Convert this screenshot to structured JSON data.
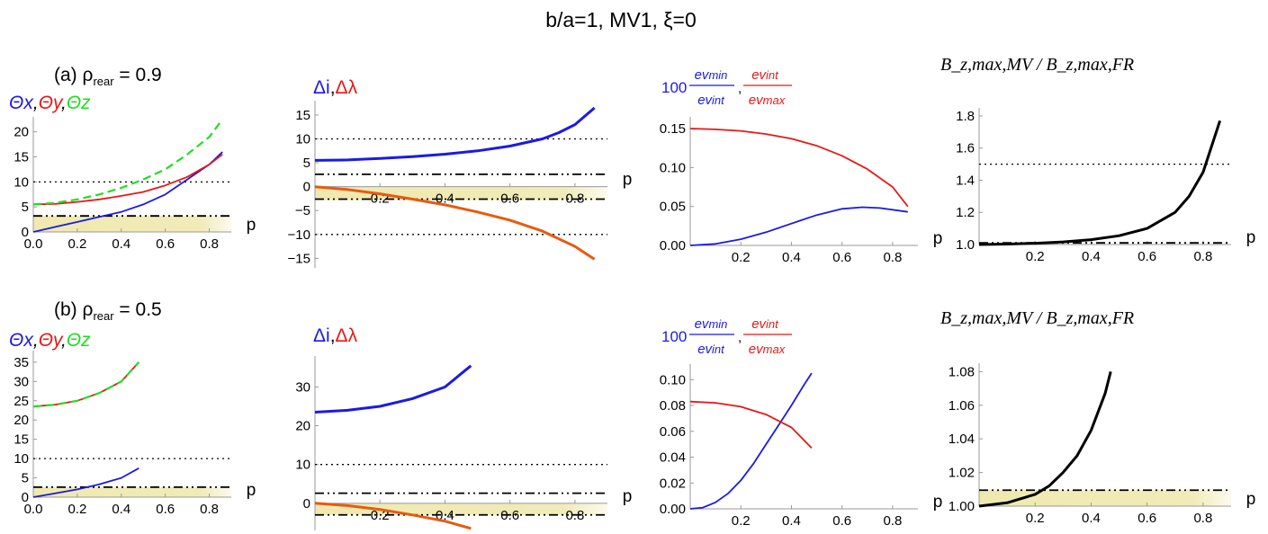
{
  "title": "b/a=1,  MV1,  ξ=0",
  "rows": [
    {
      "label_prefix": "(a)  ρ",
      "label_sub": "rear",
      "label_suffix": " = 0.9"
    },
    {
      "label_prefix": "(b)  ρ",
      "label_sub": "rear",
      "label_suffix": " = 0.5"
    }
  ],
  "headers": {
    "theta": {
      "x": "Θx",
      "y": "Θy",
      "z": "Θz"
    },
    "delta": {
      "i": "Δi",
      "lambda": "Δλ"
    },
    "ev": {
      "factor": "100",
      "num1": "ev_min",
      "den1": "ev_int",
      "num2": "ev_int",
      "den2": "ev_max"
    },
    "bz": "B_z,max,MV / B_z,max,FR"
  },
  "colors": {
    "blue": "#1a1ae6",
    "red": "#e81818",
    "green": "#22dd22",
    "black": "#000000",
    "band": "#efe9b0",
    "orange": "#e85a10"
  },
  "xlabel": "p",
  "chart_data": [
    {
      "id": "a1",
      "type": "line",
      "row": "a",
      "xlim": [
        0,
        0.9
      ],
      "ylim": [
        0,
        23
      ],
      "xticks": [
        "0.0",
        "0.2",
        "0.4",
        "0.6",
        "0.8"
      ],
      "yticks": [
        "0",
        "5",
        "10",
        "15",
        "20"
      ],
      "series": [
        {
          "name": "Θx",
          "color": "blue",
          "x": [
            0,
            0.1,
            0.2,
            0.3,
            0.4,
            0.5,
            0.6,
            0.7,
            0.8,
            0.86
          ],
          "y": [
            0,
            1,
            2,
            3,
            4,
            5.5,
            7.5,
            10.5,
            13.5,
            16
          ]
        },
        {
          "name": "Θy",
          "color": "red",
          "x": [
            0,
            0.1,
            0.2,
            0.3,
            0.4,
            0.5,
            0.6,
            0.7,
            0.8,
            0.86
          ],
          "y": [
            5.5,
            5.6,
            6,
            6.5,
            7.2,
            8,
            9.3,
            11,
            13.5,
            15.5
          ]
        },
        {
          "name": "Θz",
          "color": "green",
          "dashed": true,
          "x": [
            0,
            0.1,
            0.2,
            0.3,
            0.4,
            0.5,
            0.6,
            0.7,
            0.8,
            0.86
          ],
          "y": [
            5.5,
            5.8,
            6.5,
            7.5,
            8.8,
            10.5,
            12.5,
            15.5,
            19,
            22.5
          ]
        }
      ],
      "hlines": [
        {
          "y": 10,
          "style": "dotted"
        },
        {
          "y": 3.2,
          "style": "dashdot"
        }
      ],
      "band": [
        0,
        3.2
      ]
    },
    {
      "id": "a2",
      "type": "line",
      "row": "a",
      "xlim": [
        0,
        0.9
      ],
      "ylim": [
        -17,
        18
      ],
      "xticks": [
        "0.2",
        "0.4",
        "0.6",
        "0.8"
      ],
      "yticks": [
        "-15",
        "-10",
        "-5",
        "0",
        "5",
        "10",
        "15"
      ],
      "xaxis_at_zero": true,
      "series": [
        {
          "name": "Δi",
          "color": "blue",
          "x": [
            0,
            0.1,
            0.2,
            0.3,
            0.4,
            0.5,
            0.6,
            0.7,
            0.75,
            0.8,
            0.86
          ],
          "y": [
            5.5,
            5.6,
            5.9,
            6.3,
            6.8,
            7.5,
            8.5,
            10,
            11.3,
            13,
            16.5
          ]
        },
        {
          "name": "Δλ",
          "color": "red",
          "x": [
            0,
            0.1,
            0.2,
            0.3,
            0.4,
            0.5,
            0.6,
            0.7,
            0.8,
            0.86
          ],
          "y": [
            0,
            -0.6,
            -1.5,
            -2.6,
            -3.8,
            -5.3,
            -7,
            -9.3,
            -12.5,
            -15.2
          ]
        }
      ],
      "hlines": [
        {
          "y": 10,
          "style": "dotted"
        },
        {
          "y": -10,
          "style": "dotted"
        },
        {
          "y": 2.6,
          "style": "dashdot"
        },
        {
          "y": -2.6,
          "style": "dashdot"
        }
      ],
      "band": [
        -2.8,
        0
      ]
    },
    {
      "id": "a3",
      "type": "line",
      "row": "a",
      "xlim": [
        0,
        0.9
      ],
      "ylim": [
        0,
        0.165
      ],
      "xticks": [
        "0.2",
        "0.4",
        "0.6",
        "0.8"
      ],
      "yticks": [
        "0.00",
        "0.05",
        "0.10",
        "0.15"
      ],
      "series": [
        {
          "name": "ev_min/ev_int",
          "color": "blue",
          "x": [
            0,
            0.1,
            0.2,
            0.3,
            0.4,
            0.5,
            0.6,
            0.68,
            0.75,
            0.86
          ],
          "y": [
            0,
            0.002,
            0.008,
            0.017,
            0.028,
            0.039,
            0.047,
            0.049,
            0.048,
            0.043
          ]
        },
        {
          "name": "ev_int/ev_max",
          "color": "red",
          "x": [
            0,
            0.1,
            0.2,
            0.3,
            0.4,
            0.5,
            0.6,
            0.7,
            0.8,
            0.86
          ],
          "y": [
            0.15,
            0.149,
            0.147,
            0.143,
            0.137,
            0.128,
            0.115,
            0.098,
            0.075,
            0.05
          ]
        }
      ]
    },
    {
      "id": "a4",
      "type": "line",
      "row": "a",
      "xlim": [
        0,
        0.9
      ],
      "ylim": [
        1.0,
        1.85
      ],
      "xticks": [
        "0.2",
        "0.4",
        "0.6",
        "0.8"
      ],
      "yticks": [
        "1.0",
        "1.2",
        "1.4",
        "1.6",
        "1.8"
      ],
      "series": [
        {
          "name": "Bz ratio",
          "color": "black",
          "x": [
            0,
            0.1,
            0.2,
            0.3,
            0.4,
            0.5,
            0.6,
            0.7,
            0.75,
            0.8,
            0.86
          ],
          "y": [
            1.0,
            1.003,
            1.008,
            1.016,
            1.03,
            1.055,
            1.1,
            1.2,
            1.3,
            1.45,
            1.77
          ]
        }
      ],
      "hlines": [
        {
          "y": 1.5,
          "style": "dotted"
        },
        {
          "y": 1.01,
          "style": "dashdot"
        }
      ]
    },
    {
      "id": "b1",
      "type": "line",
      "row": "b",
      "xlim": [
        0,
        0.9
      ],
      "ylim": [
        0,
        38
      ],
      "xticks": [
        "0.0",
        "0.2",
        "0.4",
        "0.6",
        "0.8"
      ],
      "yticks": [
        "0",
        "5",
        "10",
        "15",
        "20",
        "25",
        "30",
        "35"
      ],
      "series": [
        {
          "name": "Θx",
          "color": "blue",
          "x": [
            0,
            0.1,
            0.2,
            0.3,
            0.4,
            0.48
          ],
          "y": [
            0,
            1,
            2,
            3.3,
            5,
            7.5
          ]
        },
        {
          "name": "Θy",
          "color": "red",
          "x": [
            0,
            0.1,
            0.2,
            0.3,
            0.4,
            0.48
          ],
          "y": [
            23.5,
            24,
            25,
            27,
            30,
            35
          ]
        },
        {
          "name": "Θz",
          "color": "green",
          "dashed": true,
          "x": [
            0,
            0.1,
            0.2,
            0.3,
            0.4,
            0.48
          ],
          "y": [
            23.5,
            24,
            25,
            27,
            30,
            35
          ]
        }
      ],
      "hlines": [
        {
          "y": 10,
          "style": "dotted"
        },
        {
          "y": 2.6,
          "style": "dashdot"
        }
      ],
      "band": [
        0,
        2.6
      ]
    },
    {
      "id": "b2",
      "type": "line",
      "row": "b",
      "xlim": [
        0,
        0.9
      ],
      "ylim": [
        -7,
        38
      ],
      "xticks": [
        "0.2",
        "0.4",
        "0.6",
        "0.8"
      ],
      "yticks": [
        "0",
        "10",
        "20",
        "30"
      ],
      "xaxis_at_zero": true,
      "series": [
        {
          "name": "Δi",
          "color": "blue",
          "x": [
            0,
            0.1,
            0.2,
            0.3,
            0.4,
            0.48
          ],
          "y": [
            23.5,
            24,
            25,
            27,
            30,
            35.5
          ]
        },
        {
          "name": "Δλ",
          "color": "red",
          "x": [
            0,
            0.1,
            0.2,
            0.3,
            0.4,
            0.48
          ],
          "y": [
            0,
            -0.6,
            -1.6,
            -3,
            -4.6,
            -6.5
          ]
        }
      ],
      "hlines": [
        {
          "y": 10,
          "style": "dotted"
        },
        {
          "y": 2.6,
          "style": "dashdot"
        },
        {
          "y": -3,
          "style": "dashdot"
        }
      ],
      "band": [
        -3,
        0
      ]
    },
    {
      "id": "b3",
      "type": "line",
      "row": "b",
      "xlim": [
        0,
        0.9
      ],
      "ylim": [
        0,
        0.112
      ],
      "xticks": [
        "0.2",
        "0.4",
        "0.6",
        "0.8"
      ],
      "yticks": [
        "0.00",
        "0.02",
        "0.04",
        "0.06",
        "0.08",
        "0.10"
      ],
      "series": [
        {
          "name": "ev_min/ev_int",
          "color": "blue",
          "x": [
            0,
            0.05,
            0.1,
            0.15,
            0.2,
            0.25,
            0.3,
            0.35,
            0.4,
            0.45,
            0.48
          ],
          "y": [
            0,
            0.001,
            0.005,
            0.012,
            0.022,
            0.035,
            0.05,
            0.065,
            0.08,
            0.096,
            0.105
          ]
        },
        {
          "name": "ev_int/ev_max",
          "color": "red",
          "x": [
            0,
            0.1,
            0.2,
            0.3,
            0.4,
            0.48
          ],
          "y": [
            0.083,
            0.082,
            0.079,
            0.073,
            0.063,
            0.047
          ]
        }
      ]
    },
    {
      "id": "b4",
      "type": "line",
      "row": "b",
      "xlim": [
        0,
        0.9
      ],
      "ylim": [
        1.0,
        1.085
      ],
      "xticks": [
        "0.2",
        "0.4",
        "0.6",
        "0.8"
      ],
      "yticks": [
        "1.00",
        "1.02",
        "1.04",
        "1.06",
        "1.08"
      ],
      "series": [
        {
          "name": "Bz ratio",
          "color": "black",
          "x": [
            0,
            0.1,
            0.2,
            0.25,
            0.3,
            0.35,
            0.4,
            0.45,
            0.47
          ],
          "y": [
            1.0,
            1.002,
            1.007,
            1.012,
            1.02,
            1.03,
            1.045,
            1.067,
            1.08
          ]
        }
      ],
      "hlines": [
        {
          "y": 1.0095,
          "style": "dashdot"
        }
      ],
      "band": [
        1.0,
        1.0095
      ]
    }
  ]
}
